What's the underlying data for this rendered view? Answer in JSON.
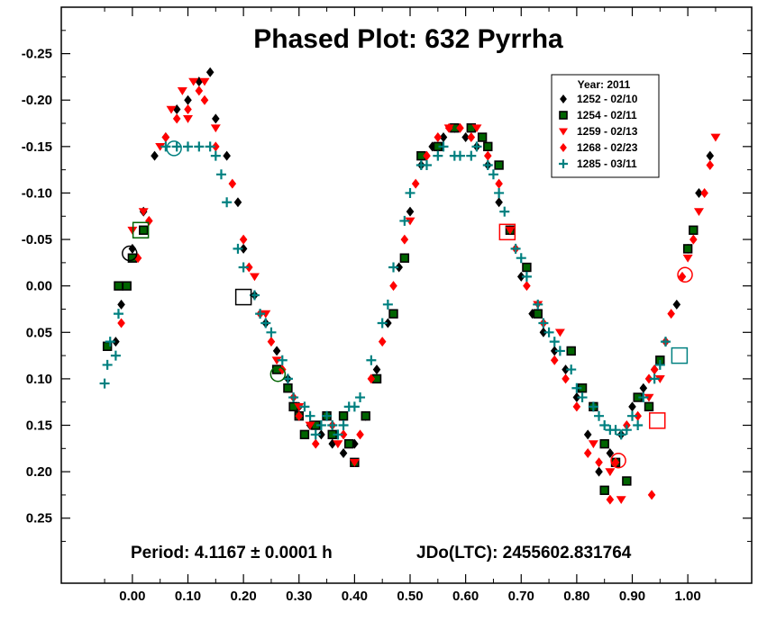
{
  "chart_data": {
    "type": "scatter",
    "title": "Phased Plot: 632 Pyrrha",
    "footer_period": "Period: 4.1167 ± 0.0001 h",
    "footer_epoch": "JDo(LTC): 2455602.831764",
    "xlabel": "",
    "ylabel": "",
    "xlim": [
      -0.128,
      1.115
    ],
    "ylim": [
      -0.3,
      0.32
    ],
    "y_inverted": true,
    "x_ticks": [
      0.0,
      0.1,
      0.2,
      0.3,
      0.4,
      0.5,
      0.6,
      0.7,
      0.8,
      0.9,
      1.0
    ],
    "x_tick_labels": [
      "0.00",
      "0.10",
      "0.20",
      "0.30",
      "0.40",
      "0.50",
      "0.60",
      "0.70",
      "0.80",
      "0.90",
      "1.00"
    ],
    "y_ticks": [
      -0.25,
      -0.2,
      -0.15,
      -0.1,
      -0.05,
      0.0,
      0.05,
      0.1,
      0.15,
      0.2,
      0.25
    ],
    "y_tick_labels": [
      "-0.25",
      "-0.20",
      "-0.15",
      "-0.10",
      "-0.05",
      "0.00",
      "0.05",
      "0.10",
      "0.15",
      "0.20",
      "0.25"
    ],
    "grid": false,
    "legend_position": "top-right",
    "legend_title": "Year: 2011",
    "series": [
      {
        "name": "1252 - 02/10",
        "marker": "diamond",
        "color": "#000000",
        "points": [
          [
            -0.03,
            0.06
          ],
          [
            -0.02,
            0.02
          ],
          [
            0.0,
            -0.04
          ],
          [
            0.02,
            -0.08
          ],
          [
            0.04,
            -0.14
          ],
          [
            0.06,
            -0.16
          ],
          [
            0.08,
            -0.19
          ],
          [
            0.1,
            -0.2
          ],
          [
            0.12,
            -0.22
          ],
          [
            0.14,
            -0.23
          ],
          [
            0.15,
            -0.18
          ],
          [
            0.17,
            -0.14
          ],
          [
            0.19,
            -0.09
          ],
          [
            0.2,
            -0.04
          ],
          [
            0.22,
            0.01
          ],
          [
            0.24,
            0.04
          ],
          [
            0.26,
            0.07
          ],
          [
            0.28,
            0.1
          ],
          [
            0.3,
            0.13
          ],
          [
            0.32,
            0.15
          ],
          [
            0.34,
            0.16
          ],
          [
            0.36,
            0.17
          ],
          [
            0.38,
            0.18
          ],
          [
            0.4,
            0.17
          ],
          [
            0.42,
            0.14
          ],
          [
            0.44,
            0.09
          ],
          [
            0.46,
            0.04
          ],
          [
            0.48,
            -0.02
          ],
          [
            0.5,
            -0.08
          ],
          [
            0.52,
            -0.13
          ],
          [
            0.54,
            -0.15
          ],
          [
            0.56,
            -0.16
          ],
          [
            0.58,
            -0.17
          ],
          [
            0.6,
            -0.16
          ],
          [
            0.62,
            -0.15
          ],
          [
            0.64,
            -0.13
          ],
          [
            0.66,
            -0.09
          ],
          [
            0.68,
            -0.06
          ],
          [
            0.7,
            -0.01
          ],
          [
            0.72,
            0.03
          ],
          [
            0.74,
            0.05
          ],
          [
            0.76,
            0.07
          ],
          [
            0.78,
            0.09
          ],
          [
            0.8,
            0.12
          ],
          [
            0.82,
            0.16
          ],
          [
            0.84,
            0.2
          ],
          [
            0.86,
            0.18
          ],
          [
            0.88,
            0.16
          ],
          [
            0.9,
            0.13
          ],
          [
            0.92,
            0.11
          ],
          [
            0.94,
            0.09
          ],
          [
            0.96,
            0.06
          ],
          [
            0.98,
            0.02
          ],
          [
            1.0,
            -0.04
          ],
          [
            1.02,
            -0.1
          ],
          [
            1.04,
            -0.14
          ]
        ]
      },
      {
        "name": "1254 - 02/11",
        "marker": "square",
        "color": "#006400",
        "points": [
          [
            -0.045,
            0.065
          ],
          [
            -0.025,
            0.0
          ],
          [
            -0.01,
            0.0
          ],
          [
            0.0,
            -0.03
          ],
          [
            0.02,
            -0.06
          ],
          [
            0.26,
            0.09
          ],
          [
            0.28,
            0.11
          ],
          [
            0.29,
            0.13
          ],
          [
            0.3,
            0.14
          ],
          [
            0.31,
            0.16
          ],
          [
            0.33,
            0.15
          ],
          [
            0.35,
            0.14
          ],
          [
            0.36,
            0.16
          ],
          [
            0.38,
            0.14
          ],
          [
            0.39,
            0.17
          ],
          [
            0.4,
            0.19
          ],
          [
            0.42,
            0.14
          ],
          [
            0.44,
            0.1
          ],
          [
            0.47,
            0.03
          ],
          [
            0.49,
            -0.03
          ],
          [
            0.52,
            -0.14
          ],
          [
            0.55,
            -0.15
          ],
          [
            0.58,
            -0.17
          ],
          [
            0.61,
            -0.17
          ],
          [
            0.63,
            -0.16
          ],
          [
            0.64,
            -0.15
          ],
          [
            0.66,
            -0.13
          ],
          [
            0.68,
            -0.06
          ],
          [
            0.71,
            -0.02
          ],
          [
            0.73,
            0.03
          ],
          [
            0.79,
            0.07
          ],
          [
            0.81,
            0.11
          ],
          [
            0.83,
            0.13
          ],
          [
            0.85,
            0.17
          ],
          [
            0.87,
            0.19
          ],
          [
            0.85,
            0.22
          ],
          [
            0.89,
            0.21
          ],
          [
            0.91,
            0.12
          ],
          [
            0.93,
            0.13
          ],
          [
            0.95,
            0.08
          ],
          [
            1.0,
            -0.04
          ],
          [
            1.01,
            -0.06
          ]
        ]
      },
      {
        "name": "1259 - 02/13",
        "marker": "triangle-down",
        "color": "#ff0000",
        "points": [
          [
            0.0,
            -0.06
          ],
          [
            0.02,
            -0.08
          ],
          [
            0.05,
            -0.15
          ],
          [
            0.07,
            -0.19
          ],
          [
            0.09,
            -0.21
          ],
          [
            0.1,
            -0.18
          ],
          [
            0.11,
            -0.22
          ],
          [
            0.13,
            -0.22
          ],
          [
            0.15,
            -0.17
          ],
          [
            0.22,
            -0.01
          ],
          [
            0.24,
            0.03
          ],
          [
            0.26,
            0.08
          ],
          [
            0.3,
            0.13
          ],
          [
            0.32,
            0.15
          ],
          [
            0.37,
            0.17
          ],
          [
            0.4,
            0.19
          ],
          [
            0.5,
            -0.07
          ],
          [
            0.57,
            -0.17
          ],
          [
            0.62,
            -0.17
          ],
          [
            0.68,
            -0.06
          ],
          [
            0.73,
            0.02
          ],
          [
            0.77,
            0.05
          ],
          [
            0.83,
            0.17
          ],
          [
            0.86,
            0.2
          ],
          [
            0.88,
            0.23
          ],
          [
            0.93,
            0.12
          ],
          [
            0.95,
            0.1
          ],
          [
            1.0,
            -0.03
          ],
          [
            1.02,
            -0.08
          ],
          [
            1.05,
            -0.16
          ]
        ]
      },
      {
        "name": "1268 - 02/23",
        "marker": "diamond",
        "color": "#ff0000",
        "points": [
          [
            -0.02,
            0.04
          ],
          [
            0.01,
            -0.03
          ],
          [
            0.03,
            -0.07
          ],
          [
            0.06,
            -0.16
          ],
          [
            0.08,
            -0.18
          ],
          [
            0.1,
            -0.19
          ],
          [
            0.12,
            -0.21
          ],
          [
            0.13,
            -0.2
          ],
          [
            0.15,
            -0.15
          ],
          [
            0.18,
            -0.11
          ],
          [
            0.2,
            -0.05
          ],
          [
            0.21,
            -0.02
          ],
          [
            0.23,
            0.03
          ],
          [
            0.25,
            0.06
          ],
          [
            0.27,
            0.09
          ],
          [
            0.29,
            0.12
          ],
          [
            0.3,
            0.14
          ],
          [
            0.33,
            0.17
          ],
          [
            0.36,
            0.15
          ],
          [
            0.38,
            0.16
          ],
          [
            0.41,
            0.16
          ],
          [
            0.43,
            0.1
          ],
          [
            0.45,
            0.06
          ],
          [
            0.47,
            0.0
          ],
          [
            0.49,
            -0.05
          ],
          [
            0.51,
            -0.11
          ],
          [
            0.53,
            -0.14
          ],
          [
            0.55,
            -0.16
          ],
          [
            0.57,
            -0.17
          ],
          [
            0.59,
            -0.17
          ],
          [
            0.61,
            -0.16
          ],
          [
            0.64,
            -0.14
          ],
          [
            0.66,
            -0.11
          ],
          [
            0.69,
            -0.04
          ],
          [
            0.71,
            0.0
          ],
          [
            0.74,
            0.04
          ],
          [
            0.76,
            0.08
          ],
          [
            0.78,
            0.1
          ],
          [
            0.8,
            0.13
          ],
          [
            0.82,
            0.18
          ],
          [
            0.84,
            0.19
          ],
          [
            0.86,
            0.23
          ],
          [
            0.87,
            0.19
          ],
          [
            0.89,
            0.15
          ],
          [
            0.91,
            0.14
          ],
          [
            0.93,
            0.1
          ],
          [
            0.94,
            0.09
          ],
          [
            0.96,
            0.06
          ],
          [
            0.97,
            0.03
          ],
          [
            0.99,
            -0.01
          ],
          [
            1.01,
            -0.05
          ],
          [
            1.03,
            -0.1
          ],
          [
            1.04,
            -0.13
          ],
          [
            0.935,
            0.225
          ]
        ]
      },
      {
        "name": "1285 - 03/11",
        "marker": "cross",
        "color": "#008080",
        "points": [
          [
            -0.05,
            0.105
          ],
          [
            -0.045,
            0.085
          ],
          [
            -0.04,
            0.06
          ],
          [
            -0.03,
            0.075
          ],
          [
            -0.025,
            0.03
          ],
          [
            0.06,
            -0.15
          ],
          [
            0.08,
            -0.15
          ],
          [
            0.1,
            -0.15
          ],
          [
            0.12,
            -0.15
          ],
          [
            0.14,
            -0.15
          ],
          [
            0.15,
            -0.14
          ],
          [
            0.16,
            -0.12
          ],
          [
            0.17,
            -0.09
          ],
          [
            0.19,
            -0.04
          ],
          [
            0.2,
            -0.02
          ],
          [
            0.22,
            0.01
          ],
          [
            0.23,
            0.03
          ],
          [
            0.24,
            0.04
          ],
          [
            0.25,
            0.05
          ],
          [
            0.27,
            0.08
          ],
          [
            0.28,
            0.1
          ],
          [
            0.29,
            0.12
          ],
          [
            0.31,
            0.13
          ],
          [
            0.32,
            0.14
          ],
          [
            0.33,
            0.16
          ],
          [
            0.34,
            0.15
          ],
          [
            0.35,
            0.14
          ],
          [
            0.36,
            0.15
          ],
          [
            0.37,
            0.16
          ],
          [
            0.38,
            0.15
          ],
          [
            0.39,
            0.13
          ],
          [
            0.4,
            0.13
          ],
          [
            0.41,
            0.12
          ],
          [
            0.43,
            0.08
          ],
          [
            0.45,
            0.04
          ],
          [
            0.46,
            0.02
          ],
          [
            0.47,
            -0.02
          ],
          [
            0.49,
            -0.07
          ],
          [
            0.5,
            -0.1
          ],
          [
            0.52,
            -0.13
          ],
          [
            0.53,
            -0.13
          ],
          [
            0.55,
            -0.14
          ],
          [
            0.56,
            -0.15
          ],
          [
            0.58,
            -0.14
          ],
          [
            0.59,
            -0.14
          ],
          [
            0.61,
            -0.14
          ],
          [
            0.62,
            -0.15
          ],
          [
            0.64,
            -0.13
          ],
          [
            0.65,
            -0.12
          ],
          [
            0.66,
            -0.1
          ],
          [
            0.67,
            -0.08
          ],
          [
            0.69,
            -0.04
          ],
          [
            0.7,
            -0.03
          ],
          [
            0.71,
            -0.01
          ],
          [
            0.73,
            0.02
          ],
          [
            0.74,
            0.04
          ],
          [
            0.75,
            0.05
          ],
          [
            0.76,
            0.06
          ],
          [
            0.77,
            0.07
          ],
          [
            0.79,
            0.09
          ],
          [
            0.8,
            0.11
          ],
          [
            0.81,
            0.12
          ],
          [
            0.83,
            0.13
          ],
          [
            0.84,
            0.14
          ],
          [
            0.85,
            0.15
          ],
          [
            0.86,
            0.155
          ],
          [
            0.87,
            0.155
          ],
          [
            0.88,
            0.16
          ],
          [
            0.89,
            0.155
          ],
          [
            0.9,
            0.14
          ],
          [
            0.91,
            0.15
          ],
          [
            0.92,
            0.12
          ],
          [
            0.94,
            0.1
          ],
          [
            0.95,
            0.085
          ],
          [
            0.96,
            0.06
          ]
        ]
      }
    ],
    "highlighted_points": [
      {
        "shape": "circle",
        "color": "#000000",
        "x": -0.005,
        "y": -0.035
      },
      {
        "shape": "square",
        "color": "#006400",
        "x": 0.015,
        "y": -0.06
      },
      {
        "shape": "circle",
        "color": "#008080",
        "x": 0.075,
        "y": -0.148
      },
      {
        "shape": "square",
        "color": "#000000",
        "x": 0.2,
        "y": 0.012
      },
      {
        "shape": "circle",
        "color": "#006400",
        "x": 0.262,
        "y": 0.095
      },
      {
        "shape": "square",
        "color": "#ff0000",
        "x": 0.675,
        "y": -0.058
      },
      {
        "shape": "circle",
        "color": "#ff0000",
        "x": 0.875,
        "y": 0.188
      },
      {
        "shape": "square",
        "color": "#ff0000",
        "x": 0.945,
        "y": 0.145
      },
      {
        "shape": "square",
        "color": "#008080",
        "x": 0.985,
        "y": 0.075
      },
      {
        "shape": "circle",
        "color": "#ff0000",
        "x": 0.995,
        "y": -0.012
      }
    ]
  }
}
